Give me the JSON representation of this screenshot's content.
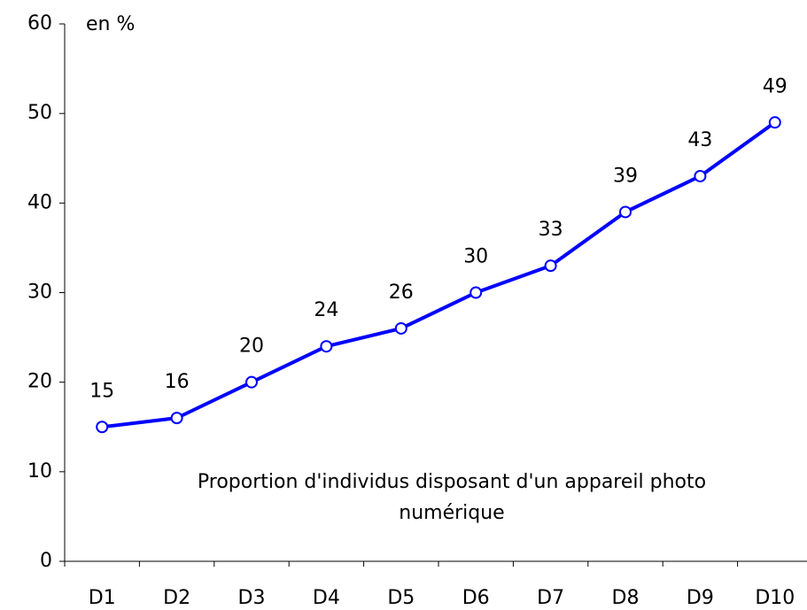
{
  "chart_data": {
    "type": "line",
    "y_label": "en %",
    "annotation": [
      "Proportion d'individus disposant d'un appareil photo",
      "numérique"
    ],
    "categories": [
      "D1",
      "D2",
      "D3",
      "D4",
      "D5",
      "D6",
      "D7",
      "D8",
      "D9",
      "D10"
    ],
    "series": [
      {
        "name": "Proportion d'individus disposant d'un appareil photo numérique",
        "color": "#0000ff",
        "values": [
          15,
          16,
          20,
          24,
          26,
          30,
          33,
          39,
          43,
          49
        ]
      }
    ],
    "ylim": [
      0,
      60
    ],
    "yticks": [
      0,
      10,
      20,
      30,
      40,
      50,
      60
    ],
    "grid": false
  }
}
